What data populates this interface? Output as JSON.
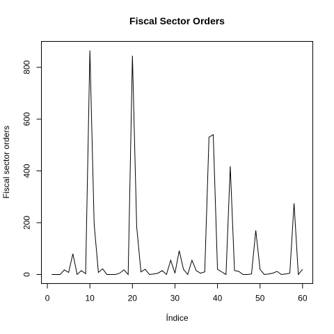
{
  "chart_data": {
    "type": "line",
    "title": "Fiscal Sector Orders",
    "xlabel": "Índice",
    "ylabel": "Fiscal sector orders",
    "xlim": [
      -1.4,
      62.4
    ],
    "ylim": [
      -35,
      900
    ],
    "x_ticks": [
      0,
      10,
      20,
      30,
      40,
      50,
      60
    ],
    "y_ticks": [
      0,
      200,
      400,
      600,
      800
    ],
    "grid": false,
    "legend": "none",
    "series": [
      {
        "x": [
          1,
          2,
          3,
          4,
          5,
          6,
          7,
          8,
          9,
          10,
          11,
          12,
          13,
          14,
          15,
          16,
          17,
          18,
          19,
          20,
          21,
          22,
          23,
          24,
          25,
          26,
          27,
          28,
          29,
          30,
          31,
          32,
          33,
          34,
          35,
          36,
          37,
          38,
          39,
          40,
          41,
          42,
          43,
          44,
          45,
          46,
          47,
          48,
          49,
          50,
          51,
          52,
          53,
          54,
          55,
          56,
          57,
          58,
          59,
          60
        ],
        "values": [
          0,
          0,
          0,
          18,
          8,
          80,
          0,
          15,
          3,
          865,
          195,
          8,
          22,
          0,
          0,
          0,
          5,
          18,
          0,
          845,
          185,
          10,
          20,
          0,
          2,
          5,
          15,
          0,
          55,
          5,
          92,
          20,
          0,
          55,
          15,
          5,
          10,
          530,
          540,
          20,
          10,
          0,
          418,
          15,
          12,
          0,
          0,
          2,
          170,
          20,
          0,
          2,
          5,
          12,
          0,
          2,
          5,
          275,
          0,
          20
        ]
      }
    ]
  }
}
